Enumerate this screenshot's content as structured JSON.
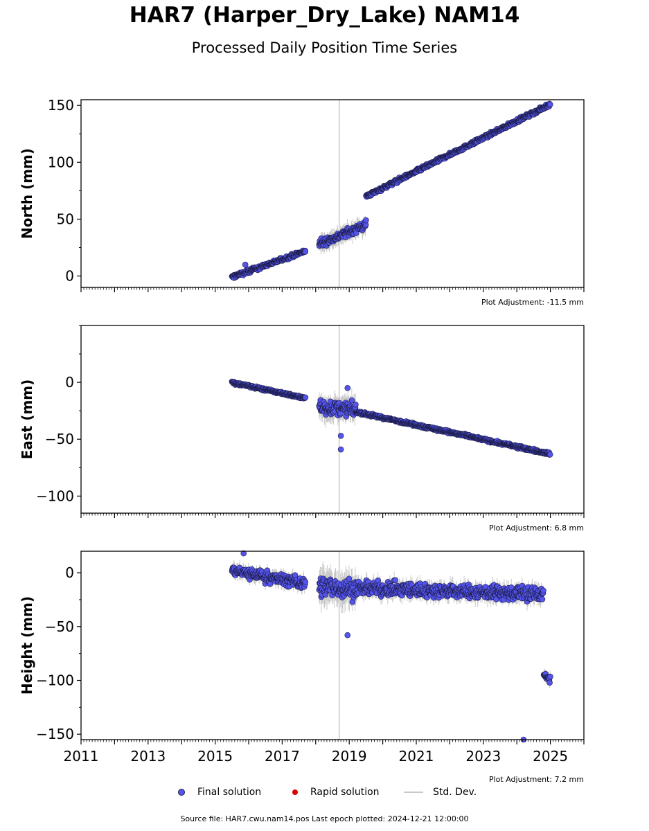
{
  "chart_data": {
    "type": "scatter",
    "title": "HAR7 (Harper_Dry_Lake) NAM14",
    "subtitle": "Processed Daily Position Time Series",
    "x_range": [
      2011,
      2026
    ],
    "x_ticks": [
      "2011",
      "2013",
      "2015",
      "2017",
      "2019",
      "2021",
      "2023",
      "2025"
    ],
    "x_tick_values": [
      2011,
      2013,
      2015,
      2017,
      2019,
      2021,
      2023,
      2025
    ],
    "colors": {
      "final": "#5555ee",
      "final_edge": "#1a1a40",
      "rapid": "#dd0000",
      "stddev": "#c8c8c8"
    },
    "panels": [
      {
        "ylabel": "North (mm)",
        "ylim": [
          -10,
          155
        ],
        "yticks": [
          0,
          50,
          100,
          150
        ],
        "ytick_labels": [
          "0",
          "50",
          "100",
          "150"
        ],
        "adjustment": "Plot Adjustment: -11.5 mm",
        "series": [
          {
            "name": "Final solution",
            "x": [
              2015.5,
              2017.7
            ],
            "y": [
              -1,
              22
            ]
          },
          {
            "name": "Final solution",
            "x": [
              2018.1,
              2019.5
            ],
            "y": [
              28,
              45
            ]
          },
          {
            "name": "Final solution",
            "x": [
              2019.5,
              2025.0
            ],
            "y": [
              70,
              151
            ]
          }
        ],
        "outliers": [
          {
            "x": 2015.9,
            "y": 10
          },
          {
            "x": 2019.5,
            "y": 49
          }
        ]
      },
      {
        "ylabel": "East (mm)",
        "ylim": [
          -115,
          50
        ],
        "yticks": [
          0,
          -50,
          -100
        ],
        "ytick_labels": [
          "0",
          "−50",
          "−100"
        ],
        "adjustment": "Plot Adjustment: 6.8 mm",
        "series": [
          {
            "name": "Final solution",
            "x": [
              2015.5,
              2017.7
            ],
            "y": [
              0,
              -14
            ]
          },
          {
            "name": "Final solution",
            "x": [
              2018.1,
              2019.2
            ],
            "y": [
              -22,
              -24
            ]
          },
          {
            "name": "Final solution",
            "x": [
              2019.2,
              2025.0
            ],
            "y": [
              -26,
              -63
            ]
          }
        ],
        "outliers": [
          {
            "x": 2018.75,
            "y": -59
          },
          {
            "x": 2018.75,
            "y": -47
          },
          {
            "x": 2018.95,
            "y": -5
          }
        ]
      },
      {
        "ylabel": "Height (mm)",
        "ylim": [
          -155,
          20
        ],
        "yticks": [
          0,
          -50,
          -100,
          -150
        ],
        "ytick_labels": [
          "0",
          "−50",
          "−100",
          "−150"
        ],
        "adjustment": "Plot Adjustment: 7.2 mm",
        "series": [
          {
            "name": "Final solution",
            "x": [
              2015.5,
              2017.7
            ],
            "y": [
              2,
              -10
            ]
          },
          {
            "name": "Final solution",
            "x": [
              2018.1,
              2019.2
            ],
            "y": [
              -12,
              -16
            ]
          },
          {
            "name": "Final solution",
            "x": [
              2019.2,
              2024.8
            ],
            "y": [
              -14,
              -20
            ]
          },
          {
            "name": "Final solution",
            "x": [
              2024.8,
              2025.0
            ],
            "y": [
              -95,
              -100
            ]
          }
        ],
        "outliers": [
          {
            "x": 2018.95,
            "y": -58
          },
          {
            "x": 2015.85,
            "y": 18
          },
          {
            "x": 2024.2,
            "y": -155
          }
        ]
      }
    ]
  },
  "legend": {
    "final_label": "Final solution",
    "rapid_label": "Rapid solution",
    "stddev_label": "Std. Dev."
  },
  "footer": "Source file: HAR7.cwu.nam14.pos  Last epoch plotted: 2024-12-21 12:00:00"
}
